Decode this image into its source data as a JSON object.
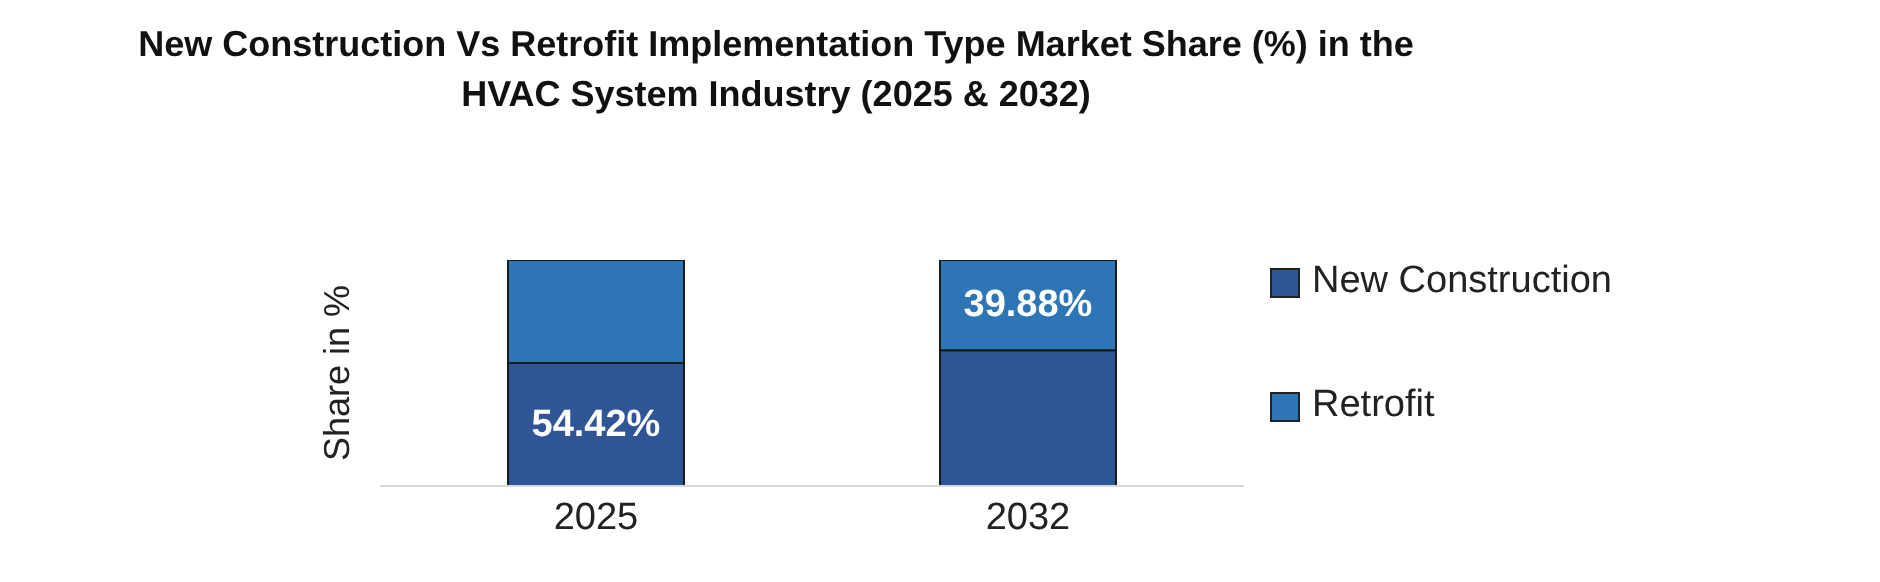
{
  "chart_data": {
    "type": "bar",
    "title": "New Construction Vs Retrofit Implementation Type Market Share (%) in the HVAC System Industry (2025 & 2032)",
    "ylabel": "Share in %",
    "categories": [
      "2025",
      "2032"
    ],
    "stacked": true,
    "ylim": [
      0,
      100
    ],
    "tick_labels": "x",
    "legend": "right",
    "grid": false,
    "series": [
      {
        "name": "New Construction",
        "color": "#2f5597",
        "values": [
          54.42,
          60.12
        ],
        "value_labels": [
          "54.42%",
          null
        ]
      },
      {
        "name": "Retrofit",
        "color": "#2e75b6",
        "values": [
          45.58,
          39.88
        ],
        "value_labels": [
          null,
          "39.88%"
        ]
      }
    ]
  }
}
